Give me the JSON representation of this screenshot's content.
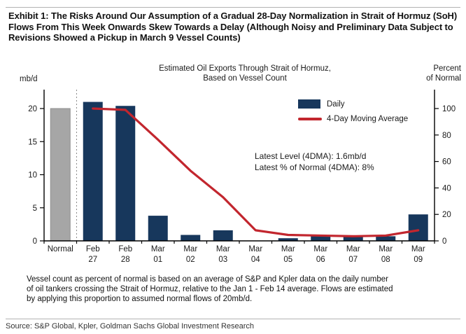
{
  "exhibit": {
    "title": "Exhibit 1: The Risks Around Our Assumption of a Gradual 28-Day Normalization in Strait of Hormuz (SoH) Flows From This Week Onwards Skew Towards a Delay (Although Noisy and Preliminary Data Subject to Revisions Showed a Pickup in March 9 Vessel Counts)",
    "footnote_lines": [
      "Vessel count as percent of normal is based on an average of S&P and Kpler data on the daily number",
      "of oil tankers crossing the Strait of Hormuz, relative to the Jan 1 - Feb 14 average. Flows are estimated",
      "by applying this proportion to assumed normal flows of 20mb/d."
    ],
    "source": "Source: S&P Global, Kpler, Goldman Sachs Global Investment Research"
  },
  "chart_data": {
    "type": "bar",
    "title_lines": [
      "Estimated Oil Exports Through Strait of Hormuz,",
      "Based on Vessel Count"
    ],
    "left_axis_unit": "mb/d",
    "right_axis_unit_lines": [
      "Percent",
      "of Normal"
    ],
    "categories": [
      "Normal",
      "Feb 27",
      "Feb 28",
      "Mar 01",
      "Mar 02",
      "Mar 03",
      "Mar 04",
      "Mar 05",
      "Mar 06",
      "Mar 07",
      "Mar 08",
      "Mar 09"
    ],
    "series": [
      {
        "name": "Daily",
        "type": "bar",
        "color": "#17375C",
        "values": [
          20,
          21,
          20.4,
          3.8,
          0.9,
          1.6,
          0,
          0.4,
          0.7,
          0.8,
          0.7,
          4
        ]
      },
      {
        "name": "4-Day Moving Average",
        "type": "line",
        "color": "#C2262E",
        "values": [
          null,
          20,
          19.8,
          15.3,
          10.6,
          6.6,
          1.6,
          0.9,
          0.8,
          0.7,
          0.8,
          1.6
        ]
      }
    ],
    "normal_category_color": "#A6A6A6",
    "left_ticks": [
      0,
      5,
      10,
      15,
      20
    ],
    "right_ticks": [
      0,
      20,
      40,
      60,
      80,
      100
    ],
    "ylim_left": [
      0,
      23
    ],
    "ylim_right": [
      0,
      115
    ],
    "gridlines": false,
    "legend_position": "inside-top-right",
    "separator_after_category": "Normal",
    "legend": [
      {
        "label": "Daily",
        "type": "bar",
        "color": "#17375C"
      },
      {
        "label": "4-Day Moving Average",
        "type": "line",
        "color": "#C2262E"
      }
    ],
    "annotation_lines": [
      "Latest Level (4DMA): 1.6mb/d",
      "Latest % of Normal (4DMA): 8%"
    ]
  }
}
